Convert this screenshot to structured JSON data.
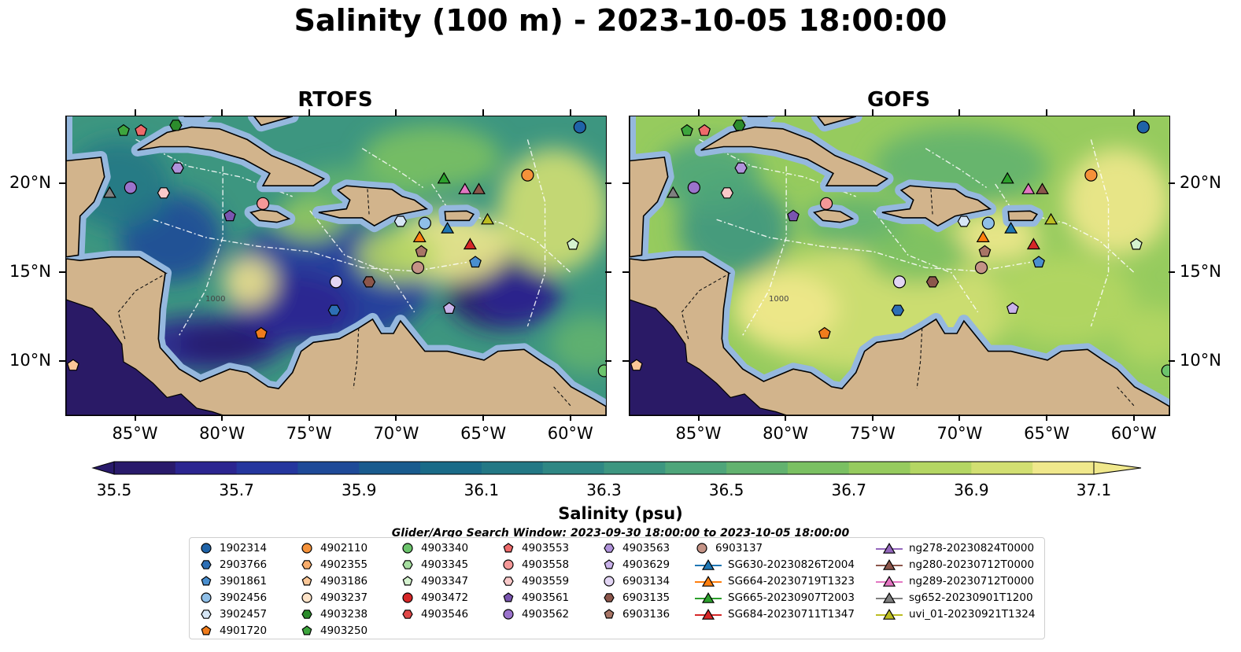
{
  "title": "Salinity (100 m) - 2023-10-05 18:00:00",
  "panels": [
    {
      "name": "rtofs",
      "title": "RTOFS",
      "model": "rtofs"
    },
    {
      "name": "gofs",
      "title": "GOFS",
      "model": "gofs"
    }
  ],
  "map": {
    "lon_range": [
      -89,
      -58
    ],
    "lat_range": [
      7,
      23.8
    ],
    "lon_ticks": [
      -85,
      -80,
      -75,
      -70,
      -65,
      -60
    ],
    "lon_tick_labels": [
      "85°W",
      "80°W",
      "75°W",
      "70°W",
      "65°W",
      "60°W"
    ],
    "lat_ticks": [
      10,
      15,
      20
    ],
    "lat_tick_labels": [
      "10°N",
      "15°N",
      "20°N"
    ],
    "land_color": "#d2b48c",
    "shelf_color": "#95b8de",
    "deep_land_color": "#2a1a66",
    "bathymetry_label": "1000"
  },
  "colorbar": {
    "label": "Salinity (psu)",
    "min": 35.5,
    "max": 37.1,
    "ticks": [
      35.5,
      35.7,
      35.9,
      36.1,
      36.3,
      36.5,
      36.7,
      36.9,
      37.1
    ],
    "tick_labels": [
      "35.5",
      "35.7",
      "35.9",
      "36.1",
      "36.3",
      "36.5",
      "36.7",
      "36.9",
      "37.1"
    ],
    "extend": "both",
    "colors": [
      "#291a6b",
      "#2b2590",
      "#25369e",
      "#1e4a98",
      "#195b8e",
      "#1a6b88",
      "#237885",
      "#2f8784",
      "#3d9680",
      "#4ea57a",
      "#62b26f",
      "#7ac062",
      "#96cb5e",
      "#b4d663",
      "#d2df72",
      "#f0e88c"
    ]
  },
  "search_window": "Glider/Argo Search Window: 2023-09-30 18:00:00 to 2023-10-05 18:00:00",
  "legend": [
    [
      {
        "label": "1902314",
        "marker": "circle",
        "color": "#1f63a8"
      },
      {
        "label": "2903766",
        "marker": "hexagon",
        "color": "#2d6fb5"
      },
      {
        "label": "3901861",
        "marker": "pentagon",
        "color": "#4a8fcf"
      },
      {
        "label": "3902456",
        "marker": "circle",
        "color": "#8fbfe8"
      },
      {
        "label": "3902457",
        "marker": "hexagon",
        "color": "#d6e6f5"
      },
      {
        "label": "4901720",
        "marker": "pentagon",
        "color": "#f07c1c"
      }
    ],
    [
      {
        "label": "4902110",
        "marker": "circle",
        "color": "#f5923a"
      },
      {
        "label": "4902355",
        "marker": "hexagon",
        "color": "#f8ad6c"
      },
      {
        "label": "4903186",
        "marker": "pentagon",
        "color": "#fbc797"
      },
      {
        "label": "4903237",
        "marker": "circle",
        "color": "#fde3c8"
      },
      {
        "label": "4903238",
        "marker": "hexagon",
        "color": "#2c8c2c"
      },
      {
        "label": "4903250",
        "marker": "pentagon",
        "color": "#3da53d"
      }
    ],
    [
      {
        "label": "4903340",
        "marker": "circle",
        "color": "#6cc46c"
      },
      {
        "label": "4903345",
        "marker": "hexagon",
        "color": "#a6dea0"
      },
      {
        "label": "4903347",
        "marker": "pentagon",
        "color": "#d5f2cf"
      },
      {
        "label": "4903472",
        "marker": "circle",
        "color": "#d62728"
      },
      {
        "label": "4903546",
        "marker": "hexagon",
        "color": "#e04848"
      }
    ],
    [
      {
        "label": "4903553",
        "marker": "pentagon",
        "color": "#ee6a6a"
      },
      {
        "label": "4903558",
        "marker": "circle",
        "color": "#f49898"
      },
      {
        "label": "4903559",
        "marker": "hexagon",
        "color": "#f9c9c9"
      },
      {
        "label": "4903561",
        "marker": "pentagon",
        "color": "#7a55b0"
      },
      {
        "label": "4903562",
        "marker": "circle",
        "color": "#9b73cc"
      }
    ],
    [
      {
        "label": "4903563",
        "marker": "hexagon",
        "color": "#b093db"
      },
      {
        "label": "4903629",
        "marker": "pentagon",
        "color": "#c9b2ea"
      },
      {
        "label": "6903134",
        "marker": "circle",
        "color": "#e2d5f4"
      },
      {
        "label": "6903135",
        "marker": "hexagon",
        "color": "#8c564b"
      },
      {
        "label": "6903136",
        "marker": "pentagon",
        "color": "#a87566"
      }
    ],
    [
      {
        "label": "6903137",
        "marker": "circle",
        "color": "#c49386"
      },
      {
        "label": "SG630-20230826T2004",
        "marker": "triangle-line",
        "color": "#1f77b4"
      },
      {
        "label": "SG664-20230719T1323",
        "marker": "triangle-line",
        "color": "#ff7f0e"
      },
      {
        "label": "SG665-20230907T2003",
        "marker": "triangle-line",
        "color": "#2ca02c"
      },
      {
        "label": "SG684-20230711T1347",
        "marker": "triangle-line",
        "color": "#d62728"
      }
    ],
    [
      {
        "label": "ng278-20230824T0000",
        "marker": "triangle-line",
        "color": "#9467bd"
      },
      {
        "label": "ng280-20230712T0000",
        "marker": "triangle-line",
        "color": "#8c564b"
      },
      {
        "label": "ng289-20230712T0000",
        "marker": "triangle-line",
        "color": "#e377c2"
      },
      {
        "label": "sg652-20230901T1200",
        "marker": "triangle-line",
        "color": "#7f7f7f"
      },
      {
        "label": "uvi_01-20230921T1324",
        "marker": "triangle-line",
        "color": "#bcbd22"
      }
    ]
  ],
  "platforms": [
    {
      "id": "1902314",
      "lon": -59.5,
      "lat": 23.2,
      "marker": "circle",
      "color": "#1f63a8"
    },
    {
      "id": "2903766",
      "lon": -73.6,
      "lat": 12.9,
      "marker": "hexagon",
      "color": "#2d6fb5"
    },
    {
      "id": "3901861",
      "lon": -65.5,
      "lat": 15.6,
      "marker": "pentagon",
      "color": "#4a8fcf"
    },
    {
      "id": "3902456",
      "lon": -68.4,
      "lat": 17.8,
      "marker": "circle",
      "color": "#8fbfe8"
    },
    {
      "id": "3902457",
      "lon": -69.8,
      "lat": 17.9,
      "marker": "hexagon",
      "color": "#d6e6f5"
    },
    {
      "id": "4901720",
      "lon": -77.8,
      "lat": 11.6,
      "marker": "pentagon",
      "color": "#f07c1c"
    },
    {
      "id": "4902110",
      "lon": -62.5,
      "lat": 20.5,
      "marker": "circle",
      "color": "#f5923a"
    },
    {
      "id": "4903186",
      "lon": -88.6,
      "lat": 9.8,
      "marker": "pentagon",
      "color": "#fbc797"
    },
    {
      "id": "4903238",
      "lon": -82.7,
      "lat": 23.3,
      "marker": "hexagon",
      "color": "#2c8c2c"
    },
    {
      "id": "4903250",
      "lon": -85.7,
      "lat": 23.0,
      "marker": "pentagon",
      "color": "#3da53d"
    },
    {
      "id": "4903340",
      "lon": -58.1,
      "lat": 9.5,
      "marker": "circle",
      "color": "#6cc46c"
    },
    {
      "id": "4903347",
      "lon": -59.9,
      "lat": 16.6,
      "marker": "pentagon",
      "color": "#d5f2cf"
    },
    {
      "id": "4903553",
      "lon": -84.7,
      "lat": 23.0,
      "marker": "pentagon",
      "color": "#ee6a6a"
    },
    {
      "id": "4903558",
      "lon": -77.7,
      "lat": 18.9,
      "marker": "circle",
      "color": "#f49898"
    },
    {
      "id": "4903559",
      "lon": -83.4,
      "lat": 19.5,
      "marker": "hexagon",
      "color": "#f9c9c9"
    },
    {
      "id": "4903561",
      "lon": -79.6,
      "lat": 18.2,
      "marker": "pentagon",
      "color": "#7a55b0"
    },
    {
      "id": "4903562",
      "lon": -85.3,
      "lat": 19.8,
      "marker": "circle",
      "color": "#9b73cc"
    },
    {
      "id": "4903563",
      "lon": -82.6,
      "lat": 20.9,
      "marker": "hexagon",
      "color": "#b093db"
    },
    {
      "id": "4903629",
      "lon": -67.0,
      "lat": 13.0,
      "marker": "pentagon",
      "color": "#c9b2ea"
    },
    {
      "id": "6903134",
      "lon": -73.5,
      "lat": 14.5,
      "marker": "circle",
      "color": "#e2d5f4"
    },
    {
      "id": "6903135",
      "lon": -71.6,
      "lat": 14.5,
      "marker": "hexagon",
      "color": "#8c564b"
    },
    {
      "id": "6903136",
      "lon": -68.6,
      "lat": 16.2,
      "marker": "pentagon",
      "color": "#a87566"
    },
    {
      "id": "6903137",
      "lon": -68.8,
      "lat": 15.3,
      "marker": "circle",
      "color": "#c49386"
    },
    {
      "id": "SG630-20230826T2004",
      "lon": -67.1,
      "lat": 17.5,
      "marker": "triangle",
      "color": "#1f77b4"
    },
    {
      "id": "SG664-20230719T1323",
      "lon": -68.7,
      "lat": 17.0,
      "marker": "triangle",
      "color": "#ff7f0e"
    },
    {
      "id": "SG665-20230907T2003",
      "lon": -67.3,
      "lat": 20.3,
      "marker": "triangle",
      "color": "#2ca02c"
    },
    {
      "id": "SG684-20230711T1347",
      "lon": -65.8,
      "lat": 16.6,
      "marker": "triangle",
      "color": "#d62728"
    },
    {
      "id": "ng280-20230712T0000",
      "lon": -65.3,
      "lat": 19.7,
      "marker": "triangle",
      "color": "#8c564b"
    },
    {
      "id": "ng289-20230712T0000",
      "lon": -66.1,
      "lat": 19.7,
      "marker": "triangle",
      "color": "#e377c2"
    },
    {
      "id": "sg652-20230901T1200",
      "lon": -86.5,
      "lat": 19.5,
      "marker": "triangle",
      "color": "#7f7f7f"
    },
    {
      "id": "uvi_01-20230921T1324",
      "lon": -64.8,
      "lat": 18.0,
      "marker": "triangle",
      "color": "#bcbd22"
    }
  ]
}
